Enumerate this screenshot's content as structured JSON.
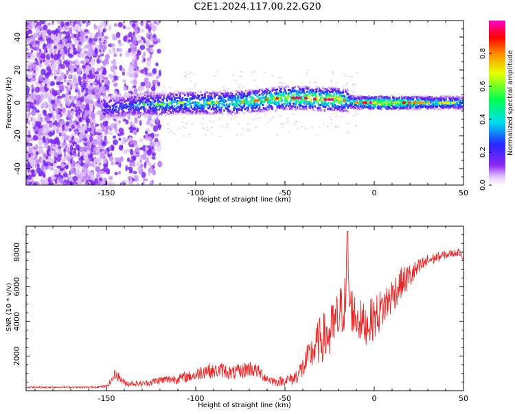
{
  "title": "C2E1.2024.117.00.22.G20",
  "colors": {
    "snr_line": "#ee2222",
    "spectrogram_noise": "#8a2be2",
    "colormap": "rainbow (white at 0, purple low, blue, cyan, green, yellow, orange, red, magenta at max)"
  },
  "chart_data": [
    {
      "type": "heatmap",
      "title": "",
      "xlabel": "Height of straight line (km)",
      "ylabel": "Frequency (Hz)",
      "xlim": [
        -195,
        50
      ],
      "ylim": [
        -50,
        50
      ],
      "x_ticks": [
        "-150",
        "-100",
        "-50",
        "0",
        "50"
      ],
      "y_ticks": [
        "-40",
        "-20",
        "0",
        "20",
        "40"
      ],
      "colorbar": {
        "label": "Normalized spectral amplitude",
        "range": [
          0.0,
          1.0
        ],
        "ticks": [
          "0.0",
          "0.2",
          "0.4",
          "0.6",
          "0.8"
        ]
      },
      "signal_trace": {
        "x": [
          -150,
          -140,
          -130,
          -120,
          -110,
          -100,
          -90,
          -80,
          -70,
          -60,
          -50,
          -40,
          -30,
          -20,
          -15,
          -10,
          0,
          10,
          20,
          30,
          40,
          50
        ],
        "frequency": [
          -3,
          -2,
          -1,
          -1,
          0,
          0,
          0,
          0,
          1,
          2,
          3,
          3,
          2,
          2,
          1,
          0,
          0,
          0,
          0,
          0,
          0,
          0
        ],
        "peak_amplitude": [
          0.3,
          0.35,
          0.4,
          0.45,
          0.5,
          0.55,
          0.55,
          0.6,
          0.65,
          0.7,
          0.75,
          0.8,
          0.8,
          0.85,
          0.6,
          0.6,
          0.9,
          0.85,
          0.7,
          0.6,
          0.55,
          0.5
        ]
      },
      "noise_region_x": [
        -195,
        -120
      ]
    },
    {
      "type": "line",
      "title": "",
      "xlabel": "Height of straight line (km)",
      "ylabel": "SNR (10 * v/v)",
      "xlim": [
        -195,
        50
      ],
      "ylim": [
        0,
        9500
      ],
      "x_ticks": [
        "-150",
        "-100",
        "-50",
        "0",
        "50"
      ],
      "y_ticks": [
        "2000",
        "4000",
        "6000",
        "8000"
      ],
      "series": [
        {
          "x": [
            -195,
            -180,
            -160,
            -150,
            -147,
            -145,
            -140,
            -130,
            -120,
            -110,
            -100,
            -95,
            -90,
            -85,
            -80,
            -75,
            -70,
            -65,
            -60,
            -55,
            -50,
            -45,
            -40,
            -35,
            -30,
            -25,
            -20,
            -16,
            -15,
            -14,
            -10,
            -5,
            0,
            5,
            10,
            15,
            20,
            25,
            30,
            35,
            40,
            45,
            48,
            50
          ],
          "y": [
            200,
            200,
            200,
            250,
            600,
            1000,
            450,
            400,
            600,
            700,
            900,
            1200,
            1100,
            1200,
            1000,
            1100,
            1300,
            1100,
            700,
            500,
            600,
            700,
            1300,
            2200,
            3000,
            3200,
            4200,
            5200,
            9200,
            5000,
            4200,
            3800,
            4200,
            4800,
            5500,
            6200,
            6600,
            7100,
            7500,
            7700,
            7850,
            7950,
            8000,
            7700
          ],
          "noise_amplitude": [
            50,
            50,
            50,
            80,
            200,
            300,
            200,
            150,
            250,
            300,
            350,
            500,
            400,
            450,
            400,
            450,
            500,
            400,
            300,
            250,
            300,
            400,
            700,
            1000,
            1400,
            1600,
            1700,
            1600,
            0,
            1400,
            1300,
            1200,
            1300,
            1200,
            1100,
            900,
            800,
            500,
            400,
            300,
            250,
            200,
            200,
            200
          ]
        }
      ]
    }
  ]
}
